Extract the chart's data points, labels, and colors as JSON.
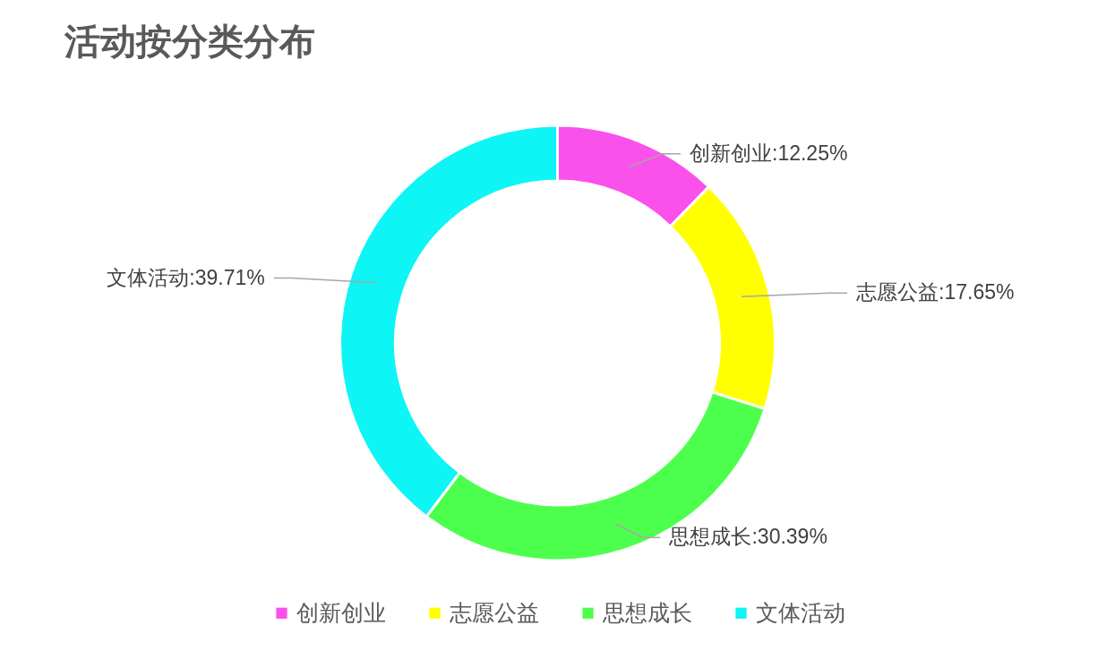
{
  "chart_data": {
    "type": "donut",
    "title": "活动按分类分布",
    "categories": [
      "创新创业",
      "志愿公益",
      "思想成长",
      "文体活动"
    ],
    "values": [
      12.25,
      17.65,
      30.39,
      39.71
    ],
    "colors": [
      "#fa50ec",
      "#ffff00",
      "#4dff4d",
      "#0df5f5"
    ],
    "value_labels": [
      "创新创业:12.25%",
      "志愿公益:17.65%",
      "思想成长:30.39%",
      "文体活动:39.71%"
    ],
    "legend": "bottom"
  }
}
